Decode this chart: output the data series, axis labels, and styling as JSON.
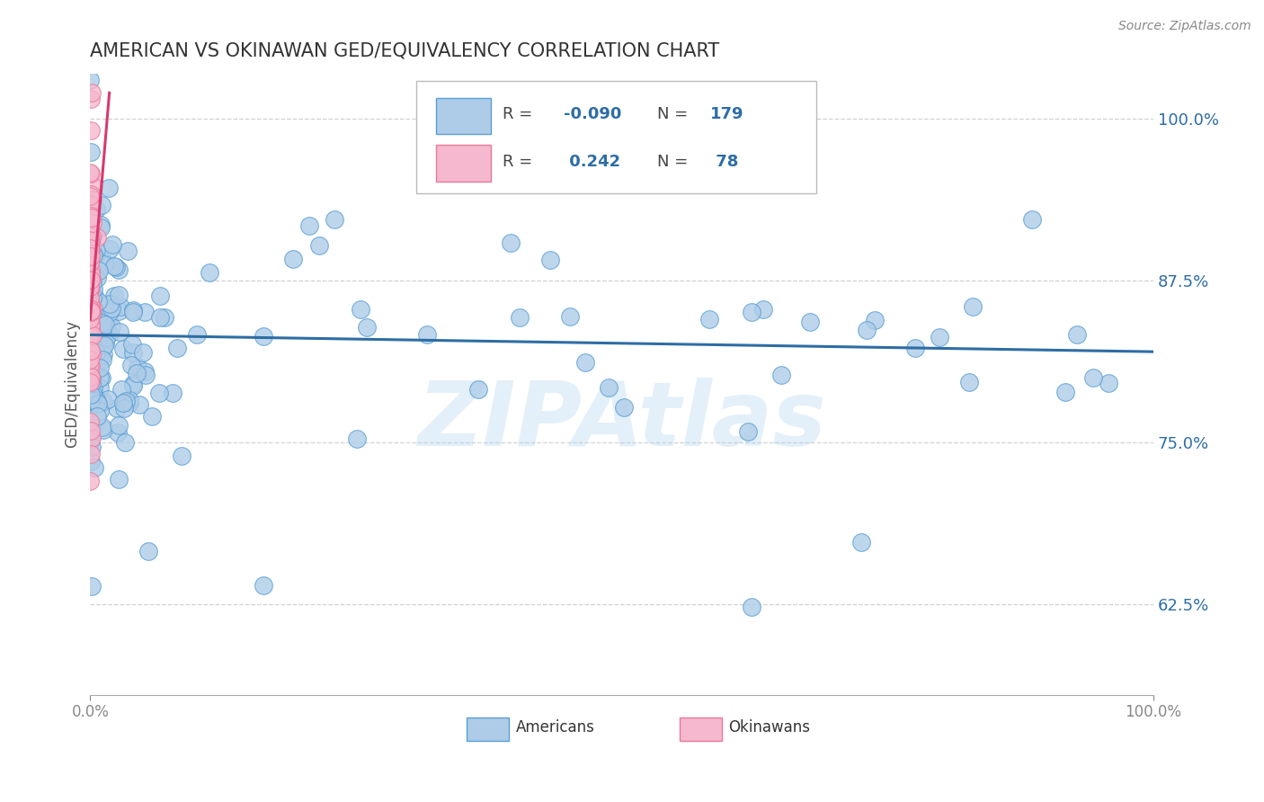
{
  "title": "AMERICAN VS OKINAWAN GED/EQUIVALENCY CORRELATION CHART",
  "source": "Source: ZipAtlas.com",
  "ylabel": "GED/Equivalency",
  "american_R": -0.09,
  "american_N": 179,
  "okinawan_R": 0.242,
  "okinawan_N": 78,
  "american_color": "#aecce8",
  "american_edge_color": "#5a9fd4",
  "american_line_color": "#2e6da4",
  "okinawan_color": "#f5b8ce",
  "okinawan_edge_color": "#e8799a",
  "okinawan_line_color": "#d63a6e",
  "background_color": "#ffffff",
  "watermark": "ZIPAtlas",
  "watermark_color": "#b0d4f0",
  "xlim": [
    0.0,
    1.0
  ],
  "ylim": [
    0.555,
    1.035
  ],
  "yticks": [
    0.625,
    0.75,
    0.875,
    1.0
  ],
  "ytick_labels": [
    "62.5%",
    "75.0%",
    "87.5%",
    "100.0%"
  ],
  "xticks": [
    0.0,
    1.0
  ],
  "xtick_labels": [
    "0.0%",
    "100.0%"
  ],
  "figsize": [
    14.06,
    8.92
  ],
  "dpi": 100,
  "am_trend_y0": 0.833,
  "am_trend_y1": 0.82,
  "ok_trend_x0": 0.0,
  "ok_trend_x1": 0.018,
  "ok_trend_y0": 0.845,
  "ok_trend_y1": 1.02
}
